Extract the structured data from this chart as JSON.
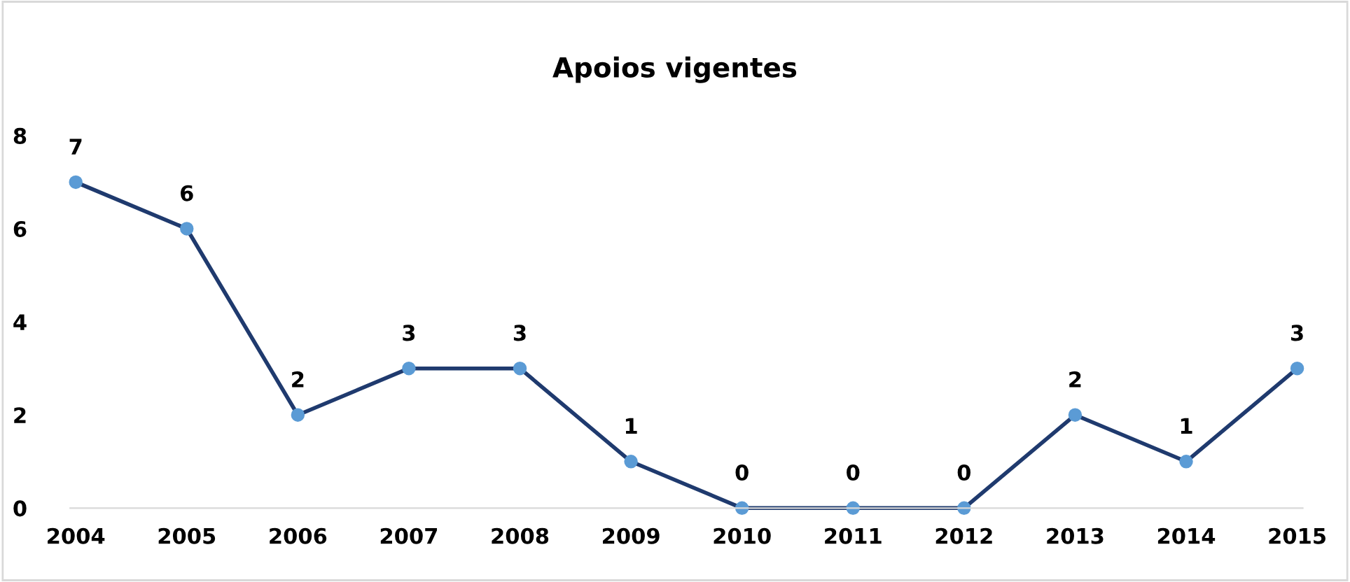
{
  "chart_data": {
    "type": "line",
    "title": "Apoios vigentes",
    "categories": [
      "2004",
      "2005",
      "2006",
      "2007",
      "2008",
      "2009",
      "2010",
      "2011",
      "2012",
      "2013",
      "2014",
      "2015"
    ],
    "series": [
      {
        "color": "#1f3a6e",
        "values": [
          7,
          6,
          2,
          3,
          3,
          1,
          0,
          0,
          0,
          2,
          1,
          3
        ]
      }
    ],
    "ylim": [
      0,
      8
    ],
    "yticks": [
      0,
      2,
      4,
      6,
      8
    ],
    "grid": false,
    "marker": "circle",
    "line_style": "solid",
    "data_labels": true
  }
}
